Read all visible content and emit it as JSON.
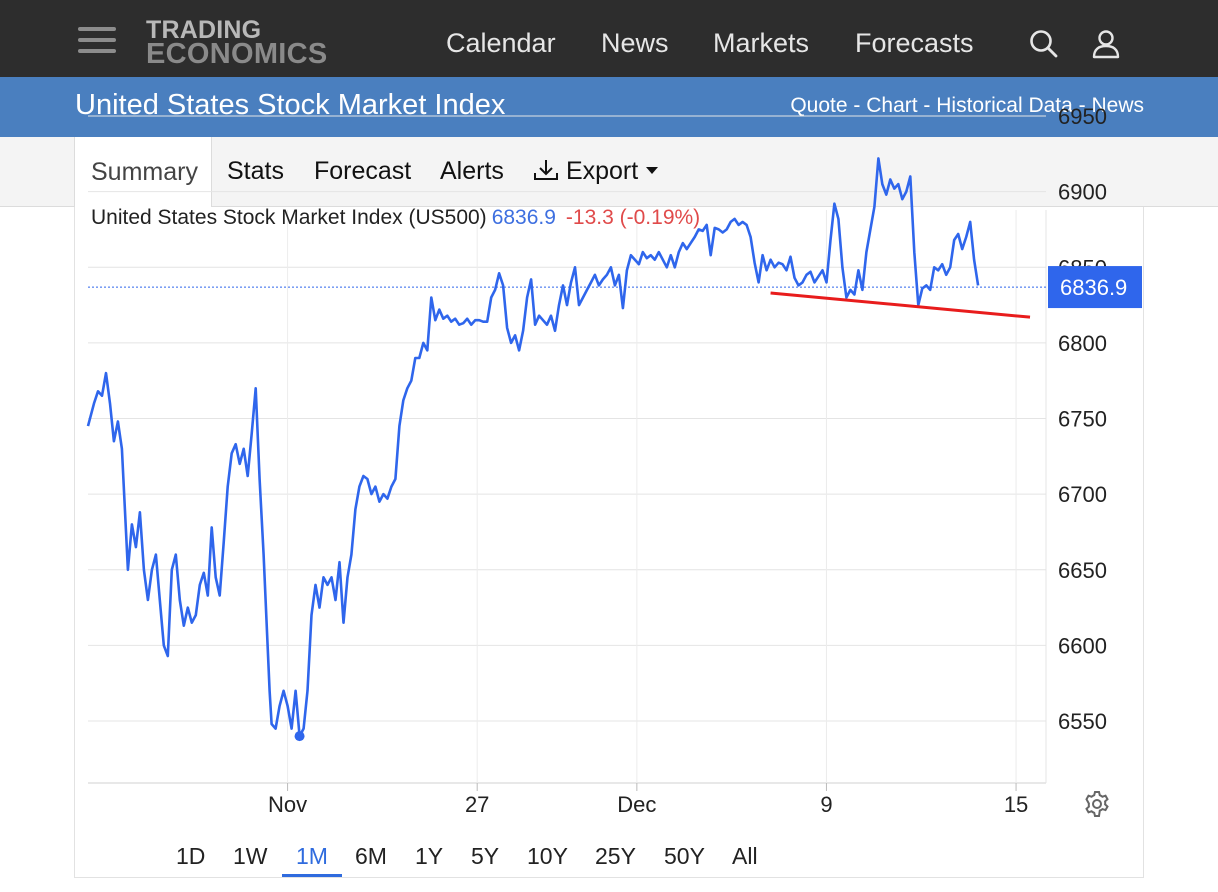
{
  "nav": {
    "logo_line1": "TRADING",
    "logo_line2": "ECONOMICS",
    "items": [
      "Calendar",
      "News",
      "Markets",
      "Forecasts"
    ],
    "search_icon": "search-icon",
    "user_icon": "user-icon",
    "menu_icon": "hamburger-menu-icon"
  },
  "header": {
    "title": "United States Stock Market Index",
    "links": [
      "Quote",
      "Chart",
      "Historical Data",
      "News"
    ],
    "separator": " - "
  },
  "tabs": {
    "items": [
      "Summary",
      "Stats",
      "Forecast",
      "Alerts"
    ],
    "active": "Summary",
    "export_label": "Export",
    "export_icon": "download-icon",
    "dropdown_icon": "caret-down-icon"
  },
  "quote": {
    "name": "United States Stock Market Index (US500)",
    "price": "6836.9",
    "change": "-13.3",
    "change_pct": "(-0.19%)"
  },
  "ranges": {
    "items": [
      "1D",
      "1W",
      "1M",
      "6M",
      "1Y",
      "5Y",
      "10Y",
      "25Y",
      "50Y",
      "All"
    ],
    "active": "1M"
  },
  "settings_icon": "gear-icon",
  "colors": {
    "series": "#2f66ec",
    "trendline": "#e81c1c",
    "price_badge": "#2f66ec",
    "nav_bg": "#2d2d2d",
    "title_bg": "#4a7fbf",
    "positive": "#3d6fe0",
    "negative": "#e04a4a"
  },
  "chart_data": {
    "type": "line",
    "title": "United States Stock Market Index (US500)",
    "xlabel": "",
    "ylabel": "",
    "ylim": [
      6500,
      6960
    ],
    "yticks": [
      6550,
      6600,
      6650,
      6700,
      6750,
      6800,
      6850,
      6900,
      6950
    ],
    "yaxis_position": "right",
    "grid": true,
    "x_ticks": [
      {
        "label": "Nov",
        "t": 10
      },
      {
        "label": "27",
        "t": 19.5
      },
      {
        "label": "Dec",
        "t": 27.5
      },
      {
        "label": "9",
        "t": 37
      },
      {
        "label": "15",
        "t": 46.5
      }
    ],
    "x_range": [
      0,
      48
    ],
    "last_value": 6836.9,
    "last_value_label": "6836.9",
    "series": [
      {
        "values": [
          [
            0.0,
            6745
          ],
          [
            0.3,
            6760
          ],
          [
            0.5,
            6768
          ],
          [
            0.7,
            6765
          ],
          [
            0.9,
            6780
          ],
          [
            1.1,
            6760
          ],
          [
            1.3,
            6735
          ],
          [
            1.5,
            6748
          ],
          [
            1.7,
            6730
          ],
          [
            2.0,
            6650
          ],
          [
            2.2,
            6680
          ],
          [
            2.4,
            6665
          ],
          [
            2.6,
            6688
          ],
          [
            2.8,
            6650
          ],
          [
            3.0,
            6630
          ],
          [
            3.2,
            6650
          ],
          [
            3.4,
            6660
          ],
          [
            3.6,
            6630
          ],
          [
            3.8,
            6600
          ],
          [
            4.0,
            6593
          ],
          [
            4.2,
            6650
          ],
          [
            4.4,
            6660
          ],
          [
            4.6,
            6630
          ],
          [
            4.8,
            6613
          ],
          [
            5.0,
            6625
          ],
          [
            5.2,
            6615
          ],
          [
            5.4,
            6620
          ],
          [
            5.6,
            6640
          ],
          [
            5.8,
            6648
          ],
          [
            6.0,
            6633
          ],
          [
            6.2,
            6678
          ],
          [
            6.4,
            6645
          ],
          [
            6.6,
            6633
          ],
          [
            6.8,
            6668
          ],
          [
            7.0,
            6705
          ],
          [
            7.2,
            6727
          ],
          [
            7.4,
            6733
          ],
          [
            7.6,
            6720
          ],
          [
            7.8,
            6730
          ],
          [
            8.0,
            6712
          ],
          [
            8.2,
            6740
          ],
          [
            8.4,
            6770
          ],
          [
            8.6,
            6710
          ],
          [
            8.8,
            6660
          ],
          [
            9.0,
            6600
          ],
          [
            9.1,
            6570
          ],
          [
            9.2,
            6548
          ],
          [
            9.4,
            6545
          ],
          [
            9.6,
            6560
          ],
          [
            9.8,
            6570
          ],
          [
            10.0,
            6560
          ],
          [
            10.2,
            6545
          ],
          [
            10.4,
            6570
          ],
          [
            10.6,
            6540
          ],
          [
            10.8,
            6545
          ],
          [
            11.0,
            6570
          ],
          [
            11.2,
            6620
          ],
          [
            11.4,
            6640
          ],
          [
            11.6,
            6625
          ],
          [
            11.8,
            6645
          ],
          [
            12.0,
            6640
          ],
          [
            12.2,
            6645
          ],
          [
            12.4,
            6630
          ],
          [
            12.6,
            6655
          ],
          [
            12.8,
            6615
          ],
          [
            13.0,
            6645
          ],
          [
            13.2,
            6660
          ],
          [
            13.4,
            6690
          ],
          [
            13.6,
            6705
          ],
          [
            13.8,
            6712
          ],
          [
            14.0,
            6710
          ],
          [
            14.2,
            6700
          ],
          [
            14.4,
            6705
          ],
          [
            14.6,
            6695
          ],
          [
            14.8,
            6700
          ],
          [
            15.0,
            6697
          ],
          [
            15.2,
            6705
          ],
          [
            15.4,
            6710
          ],
          [
            15.6,
            6745
          ],
          [
            15.8,
            6762
          ],
          [
            16.0,
            6770
          ],
          [
            16.2,
            6775
          ],
          [
            16.4,
            6790
          ],
          [
            16.6,
            6790
          ],
          [
            16.8,
            6800
          ],
          [
            17.0,
            6795
          ],
          [
            17.2,
            6830
          ],
          [
            17.4,
            6815
          ],
          [
            17.6,
            6822
          ],
          [
            17.8,
            6816
          ],
          [
            18.0,
            6818
          ],
          [
            18.2,
            6814
          ],
          [
            18.4,
            6816
          ],
          [
            18.6,
            6812
          ],
          [
            18.8,
            6813
          ],
          [
            19.0,
            6816
          ],
          [
            19.2,
            6812
          ],
          [
            19.4,
            6815
          ],
          [
            19.6,
            6815
          ],
          [
            19.8,
            6814
          ],
          [
            20.0,
            6814
          ],
          [
            20.2,
            6830
          ],
          [
            20.4,
            6835
          ],
          [
            20.6,
            6846
          ],
          [
            20.8,
            6838
          ],
          [
            21.0,
            6810
          ],
          [
            21.2,
            6800
          ],
          [
            21.4,
            6805
          ],
          [
            21.6,
            6795
          ],
          [
            21.8,
            6808
          ],
          [
            22.0,
            6830
          ],
          [
            22.2,
            6842
          ],
          [
            22.4,
            6812
          ],
          [
            22.6,
            6818
          ],
          [
            22.8,
            6815
          ],
          [
            23.0,
            6812
          ],
          [
            23.2,
            6818
          ],
          [
            23.4,
            6808
          ],
          [
            23.6,
            6825
          ],
          [
            23.8,
            6838
          ],
          [
            24.0,
            6825
          ],
          [
            24.2,
            6840
          ],
          [
            24.4,
            6850
          ],
          [
            24.6,
            6825
          ],
          [
            24.8,
            6830
          ],
          [
            25.0,
            6835
          ],
          [
            25.2,
            6840
          ],
          [
            25.4,
            6845
          ],
          [
            25.6,
            6838
          ],
          [
            25.8,
            6842
          ],
          [
            26.0,
            6845
          ],
          [
            26.2,
            6850
          ],
          [
            26.4,
            6838
          ],
          [
            26.6,
            6845
          ],
          [
            26.8,
            6823
          ],
          [
            27.0,
            6848
          ],
          [
            27.2,
            6858
          ],
          [
            27.4,
            6855
          ],
          [
            27.6,
            6852
          ],
          [
            27.8,
            6860
          ],
          [
            28.0,
            6856
          ],
          [
            28.2,
            6858
          ],
          [
            28.4,
            6855
          ],
          [
            28.6,
            6860
          ],
          [
            28.8,
            6855
          ],
          [
            29.0,
            6850
          ],
          [
            29.2,
            6858
          ],
          [
            29.4,
            6850
          ],
          [
            29.6,
            6860
          ],
          [
            29.8,
            6866
          ],
          [
            30.0,
            6862
          ],
          [
            30.2,
            6866
          ],
          [
            30.4,
            6870
          ],
          [
            30.6,
            6875
          ],
          [
            30.8,
            6874
          ],
          [
            31.0,
            6878
          ],
          [
            31.2,
            6858
          ],
          [
            31.4,
            6876
          ],
          [
            31.6,
            6875
          ],
          [
            31.8,
            6873
          ],
          [
            32.0,
            6875
          ],
          [
            32.2,
            6880
          ],
          [
            32.4,
            6882
          ],
          [
            32.6,
            6878
          ],
          [
            32.8,
            6880
          ],
          [
            33.0,
            6878
          ],
          [
            33.2,
            6870
          ],
          [
            33.4,
            6853
          ],
          [
            33.6,
            6840
          ],
          [
            33.8,
            6858
          ],
          [
            34.0,
            6848
          ],
          [
            34.2,
            6855
          ],
          [
            34.4,
            6850
          ],
          [
            34.6,
            6853
          ],
          [
            34.8,
            6852
          ],
          [
            35.0,
            6848
          ],
          [
            35.2,
            6857
          ],
          [
            35.4,
            6843
          ],
          [
            35.6,
            6838
          ],
          [
            35.8,
            6840
          ],
          [
            36.0,
            6845
          ],
          [
            36.2,
            6847
          ],
          [
            36.4,
            6840
          ],
          [
            36.6,
            6844
          ],
          [
            36.8,
            6848
          ],
          [
            37.0,
            6840
          ],
          [
            37.2,
            6868
          ],
          [
            37.4,
            6892
          ],
          [
            37.6,
            6882
          ],
          [
            37.8,
            6850
          ],
          [
            38.0,
            6830
          ],
          [
            38.2,
            6835
          ],
          [
            38.4,
            6832
          ],
          [
            38.6,
            6848
          ],
          [
            38.8,
            6835
          ],
          [
            39.0,
            6860
          ],
          [
            39.2,
            6875
          ],
          [
            39.4,
            6890
          ],
          [
            39.6,
            6922
          ],
          [
            39.8,
            6905
          ],
          [
            40.0,
            6898
          ],
          [
            40.2,
            6908
          ],
          [
            40.4,
            6902
          ],
          [
            40.6,
            6905
          ],
          [
            40.8,
            6895
          ],
          [
            41.0,
            6900
          ],
          [
            41.2,
            6910
          ],
          [
            41.4,
            6860
          ],
          [
            41.6,
            6825
          ],
          [
            41.8,
            6836
          ],
          [
            42.0,
            6838
          ],
          [
            42.2,
            6835
          ],
          [
            42.4,
            6850
          ],
          [
            42.6,
            6848
          ],
          [
            42.8,
            6852
          ],
          [
            43.0,
            6845
          ],
          [
            43.2,
            6850
          ],
          [
            43.4,
            6868
          ],
          [
            43.6,
            6872
          ],
          [
            43.8,
            6862
          ],
          [
            44.0,
            6870
          ],
          [
            44.2,
            6880
          ],
          [
            44.4,
            6855
          ],
          [
            44.6,
            6838
          ]
        ]
      }
    ],
    "trendline": {
      "from": [
        34.2,
        6833
      ],
      "to": [
        47.2,
        6817
      ]
    }
  }
}
